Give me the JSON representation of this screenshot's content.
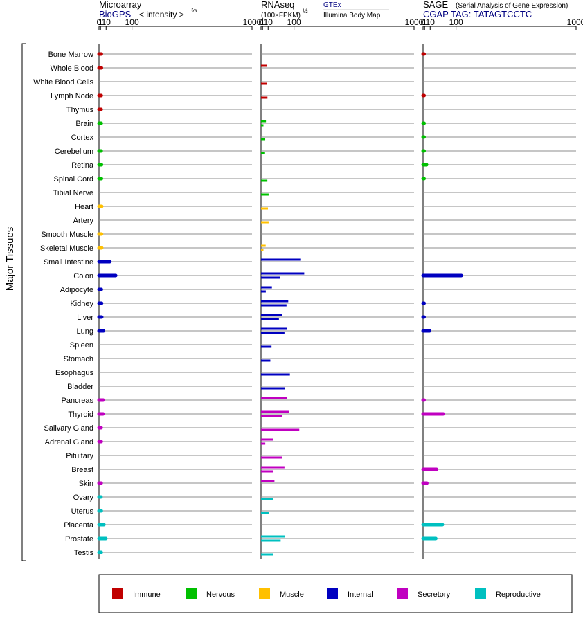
{
  "chart_data": {
    "type": "bar",
    "orientation": "horizontal",
    "y_group_label": "Major Tissues",
    "categories": [
      "Bone Marrow",
      "Whole Blood",
      "White Blood Cells",
      "Lymph Node",
      "Thymus",
      "Brain",
      "Cortex",
      "Cerebellum",
      "Retina",
      "Spinal Cord",
      "Tibial Nerve",
      "Heart",
      "Artery",
      "Smooth Muscle",
      "Skeletal Muscle",
      "Small Intestine",
      "Colon",
      "Adipocyte",
      "Kidney",
      "Liver",
      "Lung",
      "Spleen",
      "Stomach",
      "Esophagus",
      "Bladder",
      "Pancreas",
      "Thyroid",
      "Salivary Gland",
      "Adrenal Gland",
      "Pituitary",
      "Breast",
      "Skin",
      "Ovary",
      "Uterus",
      "Placenta",
      "Prostate",
      "Testis"
    ],
    "groups": [
      "Immune",
      "Immune",
      "Immune",
      "Immune",
      "Immune",
      "Nervous",
      "Nervous",
      "Nervous",
      "Nervous",
      "Nervous",
      "Nervous",
      "Muscle",
      "Muscle",
      "Muscle",
      "Muscle",
      "Internal",
      "Internal",
      "Internal",
      "Internal",
      "Internal",
      "Internal",
      "Internal",
      "Internal",
      "Internal",
      "Internal",
      "Secretory",
      "Secretory",
      "Secretory",
      "Secretory",
      "Secretory",
      "Secretory",
      "Secretory",
      "Reproductive",
      "Reproductive",
      "Reproductive",
      "Reproductive",
      "Reproductive"
    ],
    "group_colors": {
      "Immune": "#c00000",
      "Nervous": "#00c000",
      "Muscle": "#ffc000",
      "Internal": "#0000c0",
      "Secretory": "#c000c0",
      "Reproductive": "#00c0c0"
    },
    "scale": "intensity^(2/3)",
    "xticks": [
      0,
      1,
      10,
      100,
      1000
    ],
    "xlim": [
      0,
      1000
    ],
    "panels": [
      {
        "key": "microarray",
        "title": "Microarray",
        "source": "BioGPS",
        "unit": "< intensity >",
        "unit_exp": "⅔",
        "tick_labels": [
          "0",
          "1",
          "10",
          "100",
          "1000"
        ],
        "series": [
          {
            "name": "BioGPS",
            "values": [
              1.9,
              2.0,
              null,
              1.8,
              1.7,
              1.8,
              null,
              1.7,
              2.1,
              2.0,
              null,
              2.4,
              null,
              2.2,
              2.4,
              19,
              36,
              1.9,
              2.2,
              2.4,
              5.2,
              null,
              null,
              null,
              null,
              4.6,
              4.4,
              1.7,
              1.8,
              null,
              null,
              1.7,
              1.5,
              1.8,
              5.8,
              9.5,
              1.8
            ]
          }
        ]
      },
      {
        "key": "rnaseq",
        "title": "RNAseq",
        "unit": "(100×FPKM)",
        "unit_exp": "½",
        "legend_top": "GTEx",
        "legend_bottom": "Illumina Body Map",
        "tick_labels": [
          "0",
          "1",
          "10",
          "100",
          "1000"
        ],
        "series": [
          {
            "name": "GTEx",
            "values": [
              null,
              7.8,
              null,
              null,
              null,
              5.8,
              null,
              null,
              null,
              null,
              null,
              null,
              null,
              null,
              5.3,
              130,
              150,
              19,
              75,
              50,
              70,
              null,
              null,
              null,
              null,
              70,
              78,
              null,
              22,
              null,
              60,
              26,
              null,
              null,
              null,
              62,
              null
            ]
          },
          {
            "name": "Illumina Body Map",
            "values": [
              null,
              null,
              8.0,
              8.6,
              null,
              2.0,
              4.5,
              4.2,
              null,
              8.4,
              11,
              9.6,
              11,
              null,
              2.0,
              null,
              45,
              5.5,
              68,
              40,
              60,
              18,
              15,
              82,
              63,
              null,
              52,
              125,
              4.6,
              52,
              23,
              null,
              23,
              12,
              null,
              46,
              22
            ]
          }
        ]
      },
      {
        "key": "sage",
        "title": "SAGE",
        "subtitle": "(Serial Analysis of Gene Expression)",
        "tag_label": "CGAP TAG: TATAGTCCTC",
        "tick_labels": [
          "0",
          "1",
          "10",
          "100",
          "1000"
        ],
        "series": [
          {
            "name": "CGAP SAGE",
            "values": [
              0.05,
              null,
              null,
              0.05,
              null,
              0.03,
              0.03,
              0.03,
              3.5,
              0.03,
              null,
              null,
              null,
              null,
              null,
              null,
              125,
              null,
              0.05,
              0.05,
              9.0,
              null,
              null,
              null,
              null,
              0.05,
              48,
              null,
              null,
              null,
              26,
              3.9,
              null,
              null,
              45,
              24,
              null
            ]
          }
        ]
      }
    ]
  },
  "legend": [
    {
      "label": "Immune",
      "color": "#c00000"
    },
    {
      "label": "Nervous",
      "color": "#00c000"
    },
    {
      "label": "Muscle",
      "color": "#ffc000"
    },
    {
      "label": "Internal",
      "color": "#0000c0"
    },
    {
      "label": "Secretory",
      "color": "#c000c0"
    },
    {
      "label": "Reproductive",
      "color": "#00c0c0"
    }
  ]
}
